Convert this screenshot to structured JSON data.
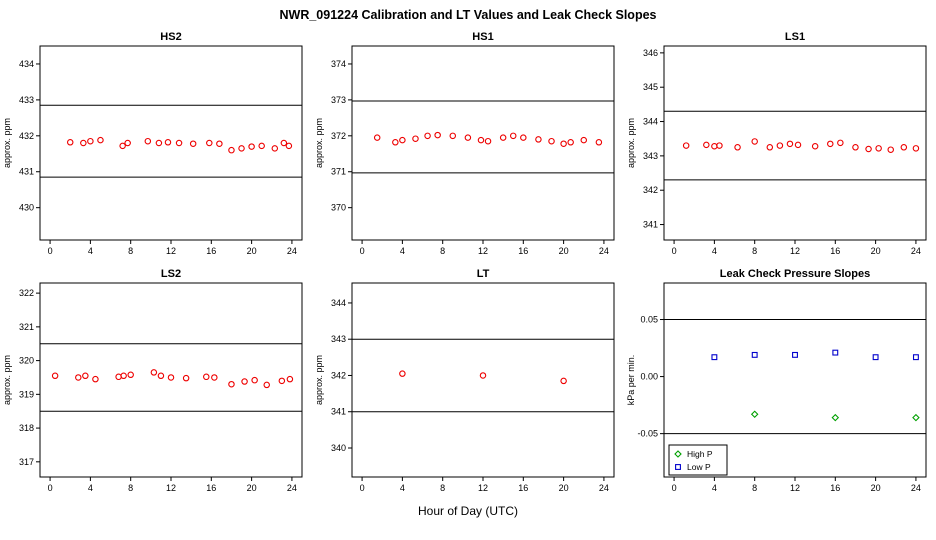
{
  "page_title": "NWR_091224  Calibration and LT Values and Leak Check Slopes",
  "xlabel": "Hour of Day (UTC)",
  "colors": {
    "cal_point": "#ee0000",
    "high_p": "#00a000",
    "low_p": "#0000cc",
    "axis": "#000000"
  },
  "chart_data": [
    {
      "type": "scatter",
      "title": "HS2",
      "ylabel": "approx. ppm",
      "xlim": [
        -1,
        25
      ],
      "ylim": [
        429.1,
        434.5
      ],
      "xticks": [
        0,
        4,
        8,
        12,
        16,
        20,
        24
      ],
      "ytick_values": [
        430,
        431,
        432,
        433,
        434
      ],
      "ytick_labels": [
        "430",
        "431",
        "432",
        "433",
        "434"
      ],
      "hlines": [
        430.85,
        432.85
      ],
      "series": [
        {
          "name": "HS2 calibration",
          "color": "#ee0000",
          "marker": "circle",
          "points": [
            [
              2,
              431.82
            ],
            [
              3.3,
              431.8
            ],
            [
              4,
              431.85
            ],
            [
              5,
              431.88
            ],
            [
              7.2,
              431.72
            ],
            [
              7.7,
              431.8
            ],
            [
              9.7,
              431.85
            ],
            [
              10.8,
              431.8
            ],
            [
              11.7,
              431.82
            ],
            [
              12.8,
              431.8
            ],
            [
              14.2,
              431.78
            ],
            [
              15.8,
              431.8
            ],
            [
              16.8,
              431.78
            ],
            [
              18,
              431.6
            ],
            [
              19,
              431.65
            ],
            [
              20,
              431.7
            ],
            [
              21,
              431.72
            ],
            [
              22.3,
              431.65
            ],
            [
              23.2,
              431.8
            ],
            [
              23.7,
              431.72
            ]
          ]
        }
      ],
      "legend": null
    },
    {
      "type": "scatter",
      "title": "HS1",
      "ylabel": "approx. ppm",
      "xlim": [
        -1,
        25
      ],
      "ylim": [
        369.1,
        374.5
      ],
      "xticks": [
        0,
        4,
        8,
        12,
        16,
        20,
        24
      ],
      "ytick_values": [
        370,
        371,
        372,
        373,
        374
      ],
      "ytick_labels": [
        "370",
        "371",
        "372",
        "373",
        "374"
      ],
      "hlines": [
        370.97,
        372.97
      ],
      "series": [
        {
          "name": "HS1 calibration",
          "color": "#ee0000",
          "marker": "circle",
          "points": [
            [
              1.5,
              371.95
            ],
            [
              3.3,
              371.82
            ],
            [
              4,
              371.88
            ],
            [
              5.3,
              371.92
            ],
            [
              6.5,
              372
            ],
            [
              7.5,
              372.02
            ],
            [
              9,
              372
            ],
            [
              10.5,
              371.95
            ],
            [
              11.8,
              371.88
            ],
            [
              12.5,
              371.85
            ],
            [
              14,
              371.95
            ],
            [
              15,
              372
            ],
            [
              16,
              371.95
            ],
            [
              17.5,
              371.9
            ],
            [
              18.8,
              371.85
            ],
            [
              20,
              371.78
            ],
            [
              20.7,
              371.82
            ],
            [
              22,
              371.88
            ],
            [
              23.5,
              371.82
            ]
          ]
        }
      ],
      "legend": null
    },
    {
      "type": "scatter",
      "title": "LS1",
      "ylabel": "approx. ppm",
      "xlim": [
        -1,
        25
      ],
      "ylim": [
        340.55,
        346.2
      ],
      "xticks": [
        0,
        4,
        8,
        12,
        16,
        20,
        24
      ],
      "ytick_values": [
        341,
        342,
        343,
        344,
        345,
        346
      ],
      "ytick_labels": [
        "341",
        "342",
        "343",
        "344",
        "345",
        "346"
      ],
      "hlines": [
        342.3,
        344.3
      ],
      "series": [
        {
          "name": "LS1 calibration",
          "color": "#ee0000",
          "marker": "circle",
          "points": [
            [
              1.2,
              343.3
            ],
            [
              3.2,
              343.32
            ],
            [
              4,
              343.28
            ],
            [
              4.5,
              343.3
            ],
            [
              6.3,
              343.25
            ],
            [
              8,
              343.42
            ],
            [
              9.5,
              343.25
            ],
            [
              10.5,
              343.3
            ],
            [
              11.5,
              343.35
            ],
            [
              12.3,
              343.32
            ],
            [
              14,
              343.28
            ],
            [
              15.5,
              343.35
            ],
            [
              16.5,
              343.38
            ],
            [
              18,
              343.25
            ],
            [
              19.3,
              343.2
            ],
            [
              20.3,
              343.22
            ],
            [
              21.5,
              343.18
            ],
            [
              22.8,
              343.25
            ],
            [
              24,
              343.22
            ]
          ]
        }
      ],
      "legend": null
    },
    {
      "type": "scatter",
      "title": "LS2",
      "ylabel": "approx. ppm",
      "xlim": [
        -1,
        25
      ],
      "ylim": [
        316.55,
        322.3
      ],
      "xticks": [
        0,
        4,
        8,
        12,
        16,
        20,
        24
      ],
      "ytick_values": [
        317,
        318,
        319,
        320,
        321,
        322
      ],
      "ytick_labels": [
        "317",
        "318",
        "319",
        "320",
        "321",
        "322"
      ],
      "hlines": [
        318.5,
        320.5
      ],
      "series": [
        {
          "name": "LS2 calibration",
          "color": "#ee0000",
          "marker": "circle",
          "points": [
            [
              0.5,
              319.55
            ],
            [
              2.8,
              319.5
            ],
            [
              3.5,
              319.55
            ],
            [
              4.5,
              319.45
            ],
            [
              6.8,
              319.52
            ],
            [
              7.3,
              319.55
            ],
            [
              8,
              319.58
            ],
            [
              10.3,
              319.65
            ],
            [
              11,
              319.55
            ],
            [
              12,
              319.5
            ],
            [
              13.5,
              319.48
            ],
            [
              15.5,
              319.52
            ],
            [
              16.3,
              319.5
            ],
            [
              18,
              319.3
            ],
            [
              19.3,
              319.38
            ],
            [
              20.3,
              319.42
            ],
            [
              21.5,
              319.28
            ],
            [
              23,
              319.4
            ],
            [
              23.8,
              319.45
            ]
          ]
        }
      ],
      "legend": null
    },
    {
      "type": "scatter",
      "title": "LT",
      "ylabel": "approx. ppm",
      "xlim": [
        -1,
        25
      ],
      "ylim": [
        339.2,
        344.55
      ],
      "xticks": [
        0,
        4,
        8,
        12,
        16,
        20,
        24
      ],
      "ytick_values": [
        340,
        341,
        342,
        343,
        344
      ],
      "ytick_labels": [
        "340",
        "341",
        "342",
        "343",
        "344"
      ],
      "hlines": [
        341,
        343
      ],
      "series": [
        {
          "name": "LT values",
          "color": "#ee0000",
          "marker": "circle",
          "points": [
            [
              4,
              342.05
            ],
            [
              12,
              342
            ],
            [
              20,
              341.85
            ]
          ]
        }
      ],
      "legend": null
    },
    {
      "type": "scatter",
      "title": "Leak Check Pressure Slopes",
      "ylabel": "kPa per min.",
      "xlim": [
        -1,
        25
      ],
      "ylim": [
        -0.088,
        0.082
      ],
      "xticks": [
        0,
        4,
        8,
        12,
        16,
        20,
        24
      ],
      "ytick_values": [
        -0.05,
        0,
        0.05
      ],
      "ytick_labels": [
        "-0.05",
        "0.00",
        "0.05"
      ],
      "hlines": [
        -0.05,
        0.05
      ],
      "series": [
        {
          "name": "High P",
          "color": "#00a000",
          "marker": "diamond",
          "points": [
            [
              8,
              -0.033
            ],
            [
              16,
              -0.036
            ],
            [
              24,
              -0.036
            ]
          ]
        },
        {
          "name": "Low P",
          "color": "#0000cc",
          "marker": "square",
          "points": [
            [
              4,
              0.017
            ],
            [
              8,
              0.019
            ],
            [
              12,
              0.019
            ],
            [
              16,
              0.021
            ],
            [
              20,
              0.017
            ],
            [
              24,
              0.017
            ]
          ]
        }
      ],
      "legend": {
        "entries": [
          {
            "label": "High P",
            "color": "#00a000",
            "marker": "diamond"
          },
          {
            "label": "Low P",
            "color": "#0000cc",
            "marker": "square"
          }
        ]
      }
    }
  ]
}
